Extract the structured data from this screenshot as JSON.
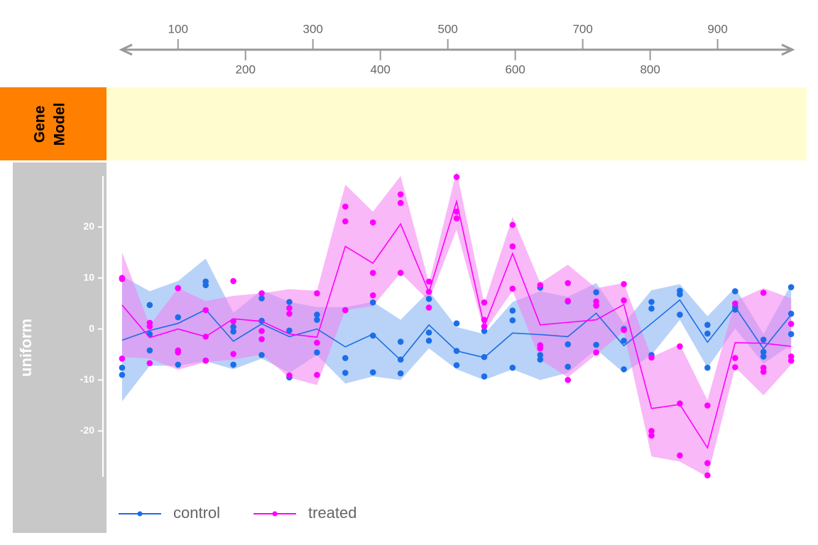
{
  "chart_data": {
    "type": "line",
    "genome_axis": {
      "xlim": [
        15,
        1012
      ],
      "xticks": [
        100,
        200,
        300,
        400,
        500,
        600,
        700,
        800,
        900
      ]
    },
    "tracks": [
      {
        "title_lines": [
          "Gene",
          "Model"
        ]
      },
      {
        "title": "uniform"
      }
    ],
    "xlim": [
      15,
      1012
    ],
    "x": [
      17,
      58,
      100,
      141,
      182,
      224,
      265,
      306,
      348,
      389,
      430,
      472,
      513,
      554,
      596,
      637,
      678,
      720,
      761,
      802,
      844,
      885,
      926,
      968,
      1009
    ],
    "ylim": [
      -29,
      30
    ],
    "yticks": [
      -20,
      -10,
      0,
      10,
      20
    ],
    "series": [
      {
        "name": "control",
        "color": "#1a6ee8",
        "band_color": "#7fadf2",
        "values": [
          -2.2,
          -0.3,
          1.1,
          3.8,
          -2.4,
          1.0,
          -1.5,
          0,
          -3.5,
          -1.0,
          -6.1,
          0.8,
          -4.3,
          -5.6,
          -0.8,
          -1.1,
          -1.5,
          3.1,
          -3.3,
          1.1,
          5.7,
          -2.6,
          4.3,
          -3.9,
          2.8
        ],
        "upper": [
          10.4,
          7.4,
          9.4,
          13.8,
          3.2,
          7.6,
          5.3,
          4.3,
          4.3,
          5.3,
          1.8,
          7.4,
          0.4,
          -1,
          5.3,
          7.4,
          6.3,
          9,
          1.1,
          7.6,
          8.8,
          2.5,
          8.1,
          -1,
          8.8
        ],
        "lower": [
          -14.2,
          -7.2,
          -7.2,
          -6.3,
          -7.9,
          -5.8,
          -8.6,
          -5.1,
          -10.7,
          -9.3,
          -10,
          -3.8,
          -7.9,
          -10,
          -7.9,
          -10,
          -8.6,
          -4,
          -8.6,
          -5.1,
          1.8,
          -7.6,
          0.1,
          -6.8,
          -3.1
        ],
        "replicates": [
          [
            10,
            4.7,
            8,
            9.3,
            0.4,
            6,
            5.3,
            2.8,
            3.7,
            5.2,
            -2.5,
            5.9,
            1.1,
            -0.4,
            3.6,
            8.1,
            5.4,
            7.2,
            0,
            5.3,
            7.5,
            0.8,
            7.4,
            -2.1,
            8.2
          ],
          [
            -7.6,
            -1,
            2.3,
            8.6,
            -0.5,
            1.6,
            -0.3,
            1.8,
            -5.7,
            -1.3,
            -6,
            -0.7,
            -4.3,
            -5.5,
            1.7,
            -5.1,
            -3,
            4.6,
            -2.3,
            4,
            6.8,
            -0.9,
            3.8,
            -4.5,
            3
          ],
          [
            -9,
            -4.2,
            -7,
            -6.2,
            -7,
            -5.1,
            -9.5,
            -4.6,
            -8.6,
            -8.5,
            -8.7,
            -2.3,
            -7.1,
            -9.3,
            -7.6,
            -6,
            -7.4,
            -3.1,
            -7.9,
            -5.1,
            2.8,
            -7.6,
            4.3,
            -5.4,
            -1
          ]
        ]
      },
      {
        "name": "treated",
        "color": "#ff00ff",
        "band_color": "#f47ef0",
        "values": [
          4.7,
          -1.7,
          0,
          -1.5,
          2,
          1.5,
          -1,
          -1.6,
          16.2,
          12.9,
          20.6,
          7.2,
          25,
          0.5,
          14.8,
          0.8,
          1.3,
          1.8,
          4.8,
          -15.6,
          -14.8,
          -23.3,
          -2.7,
          -2.8,
          -3.4
        ],
        "upper": [
          15,
          0.7,
          8,
          5.5,
          6.5,
          7,
          7.8,
          7.5,
          28.3,
          23,
          30,
          9,
          31,
          5,
          22,
          9,
          12.6,
          8,
          9,
          -5.5,
          -3,
          -14,
          5.5,
          8,
          6
        ],
        "lower": [
          -5.5,
          -5.8,
          -8,
          -6.5,
          -6,
          -5,
          -9.5,
          -11,
          3.7,
          4.5,
          11,
          5.5,
          19.5,
          -0.5,
          7.5,
          -6,
          -9.5,
          -5,
          -0.5,
          -25,
          -26,
          -29,
          -7.5,
          -13,
          -7
        ],
        "replicates": [
          [
            10,
            1.2,
            8,
            3.7,
            9.4,
            7,
            4.1,
            7,
            24,
            20.9,
            26.4,
            9.3,
            29.8,
            5.2,
            20.4,
            8.6,
            9,
            5.4,
            8.8,
            -5.6,
            -3.4,
            -15,
            5,
            7.1,
            1
          ],
          [
            9.8,
            0.5,
            -4.2,
            -1.5,
            1.5,
            -0.4,
            3,
            -2.7,
            21.1,
            11,
            24.7,
            7.3,
            23,
            1.8,
            16.2,
            -3.2,
            5.5,
            4.6,
            5.6,
            -20,
            -14.6,
            -26.3,
            -5.7,
            -7.6,
            -5.4
          ],
          [
            -5.8,
            -6.7,
            -4.6,
            -6.2,
            -4.9,
            -2,
            -9.1,
            -9,
            3.7,
            6.6,
            11,
            4.2,
            21.7,
            0.5,
            7.9,
            -3.8,
            -10,
            -4.6,
            -0.2,
            -20.9,
            -24.8,
            -28.7,
            -7.5,
            -8.4,
            -6.2
          ]
        ]
      }
    ]
  }
}
